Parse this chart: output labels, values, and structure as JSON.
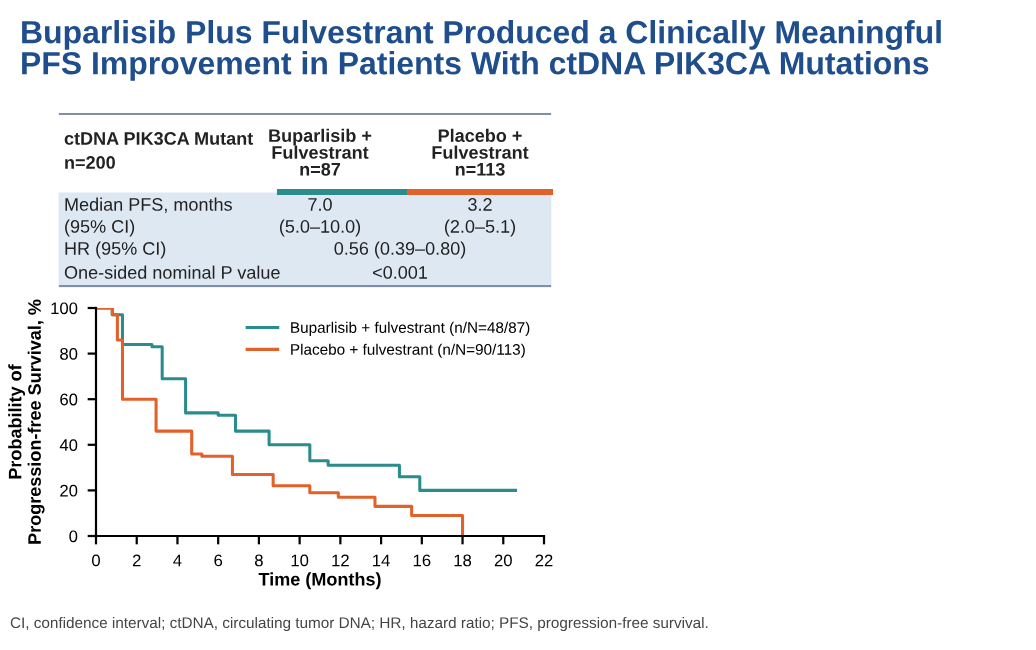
{
  "chart_data": {
    "type": "step",
    "title": "Buparlisib Plus Fulvestrant Produced a Clinically Meaningful\nPFS Improvement in Patients With ctDNA PIK3CA Mutations",
    "xlabel": "Time (Months)",
    "ylabel": "Probability of\nProgression-free Survival, %",
    "series": [
      {
        "name": "Buparlisib + fulvestrant (n/N=48/87)",
        "color": "#2a8c8c",
        "x": [
          0,
          0.8,
          1.3,
          2.75,
          3.25,
          4.4,
          6.0,
          6.85,
          8.5,
          10.5,
          11.4,
          14.9,
          15.9,
          20.6
        ],
        "values": [
          100,
          97,
          84,
          83,
          69,
          54,
          53,
          46,
          40,
          33,
          31,
          26,
          20,
          20
        ]
      },
      {
        "name": "Placebo + fulvestrant (n/N=90/113)",
        "color": "#e0622a",
        "x": [
          0,
          0.8,
          1.05,
          1.3,
          2.95,
          4.7,
          5.2,
          6.7,
          8.7,
          10.5,
          11.9,
          13.7,
          15.5,
          18,
          18
        ],
        "values": [
          100,
          97,
          86,
          60,
          46,
          36,
          35,
          27,
          22,
          19,
          17,
          13,
          9,
          9,
          0
        ]
      }
    ],
    "xlim": [
      0,
      22
    ],
    "xticks": [
      0,
      2,
      4,
      6,
      8,
      10,
      12,
      14,
      16,
      18,
      20,
      22
    ],
    "ylim": [
      0,
      100
    ],
    "yticks": [
      0,
      20,
      40,
      60,
      80,
      100
    ],
    "grid": false,
    "legend": "top right",
    "annotations": [
      "ctDNA PIK3CA Mutant",
      "n=200",
      "Buparlisib +\nFulvestrant\nn=87",
      "Placebo +\nFulvestrant\nn=113",
      "Median PFS, months",
      "7.0",
      "3.2",
      "(95% CI)",
      "(5.0–10.0)",
      "(2.0–5.1)",
      "HR (95% CI)",
      "0.56 (0.39–0.80)",
      "One-sided nominal P value",
      "<0.001",
      "CI, confidence interval; ctDNA, circulating tumor DNA; HR, hazard ratio; PFS, progression-free survival."
    ]
  }
}
